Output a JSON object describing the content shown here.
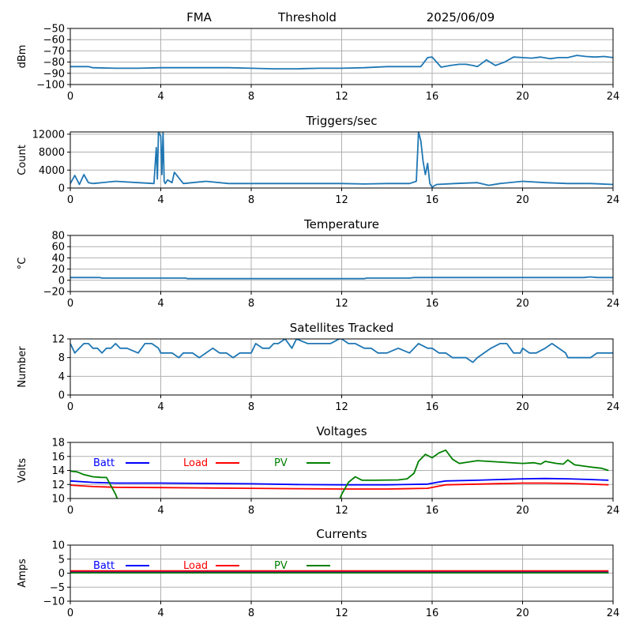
{
  "figure": {
    "header": {
      "left": "FMA",
      "middle": "Threshold",
      "right": "2025/06/09"
    }
  },
  "chart_data": [
    {
      "id": "threshold",
      "type": "line",
      "title": "",
      "xlabel": "",
      "ylabel": "dBm",
      "xlim": [
        0,
        24
      ],
      "ylim": [
        -100,
        -50
      ],
      "xticks": [
        0,
        4,
        8,
        12,
        16,
        20,
        24
      ],
      "yticks": [
        -100,
        -90,
        -80,
        -70,
        -60,
        -50
      ],
      "grid": true,
      "series": [
        {
          "color": "#1f77b4",
          "x": [
            0,
            0.8,
            1,
            2,
            3,
            4,
            5,
            6,
            7,
            8,
            9,
            10,
            11,
            12,
            13,
            14,
            15,
            15.5,
            15.8,
            16,
            16.2,
            16.4,
            16.8,
            17.2,
            17.5,
            17.8,
            18,
            18.4,
            18.8,
            19.2,
            19.6,
            20,
            20.4,
            20.8,
            21.2,
            21.6,
            22,
            22.4,
            22.8,
            23.2,
            23.6,
            24
          ],
          "y": [
            -84,
            -84,
            -85,
            -85.5,
            -85.5,
            -85,
            -85,
            -85,
            -85,
            -85.5,
            -86,
            -86,
            -85.5,
            -85.5,
            -85,
            -84,
            -84,
            -84,
            -76,
            -75.5,
            -80,
            -84.5,
            -83,
            -82,
            -82,
            -83,
            -84,
            -78,
            -83,
            -80,
            -75.5,
            -76,
            -76.5,
            -75.5,
            -77,
            -76,
            -76,
            -74,
            -75,
            -75.5,
            -75,
            -76
          ]
        }
      ]
    },
    {
      "id": "triggers",
      "type": "line",
      "title": "Triggers/sec",
      "xlabel": "",
      "ylabel": "Count",
      "xlim": [
        0,
        24
      ],
      "ylim": [
        0,
        12500
      ],
      "xticks": [
        0,
        4,
        8,
        12,
        16,
        20,
        24
      ],
      "yticks": [
        0,
        4000,
        8000,
        12000
      ],
      "grid": true,
      "series": [
        {
          "color": "#1f77b4",
          "x": [
            0,
            0.2,
            0.4,
            0.6,
            0.8,
            1,
            2,
            3,
            3.7,
            3.8,
            3.85,
            3.9,
            4,
            4.05,
            4.1,
            4.15,
            4.2,
            4.3,
            4.5,
            4.6,
            5,
            6,
            7,
            8,
            9,
            10,
            11,
            12,
            13,
            14,
            15,
            15.3,
            15.4,
            15.5,
            15.6,
            15.7,
            15.8,
            15.9,
            16,
            16.2,
            17,
            18,
            18.5,
            19,
            20,
            21,
            22,
            23,
            24
          ],
          "y": [
            1000,
            2800,
            800,
            3000,
            1200,
            1000,
            1500,
            1200,
            1000,
            9000,
            2000,
            12500,
            11500,
            3000,
            12500,
            1500,
            1000,
            1800,
            1200,
            3500,
            1000,
            1500,
            1000,
            1000,
            1000,
            1000,
            1000,
            1000,
            900,
            1000,
            1000,
            1500,
            12500,
            10500,
            6000,
            3000,
            5500,
            1000,
            200,
            800,
            1000,
            1200,
            600,
            1000,
            1500,
            1200,
            1000,
            1000,
            800
          ]
        }
      ]
    },
    {
      "id": "temperature",
      "type": "line",
      "title": "Temperature",
      "xlabel": "",
      "ylabel": "°C",
      "xlim": [
        0,
        24
      ],
      "ylim": [
        -20,
        80
      ],
      "xticks": [
        0,
        4,
        8,
        12,
        16,
        20,
        24
      ],
      "yticks": [
        -20,
        0,
        20,
        40,
        60,
        80
      ],
      "grid": true,
      "series": [
        {
          "color": "#1f77b4",
          "x": [
            0,
            1.3,
            1.4,
            5.1,
            5.2,
            13,
            13.1,
            15,
            15.2,
            22.7,
            23,
            23.3,
            24
          ],
          "y": [
            5,
            5,
            4,
            4,
            3,
            3,
            4,
            4,
            5,
            5,
            6,
            5,
            5
          ]
        }
      ]
    },
    {
      "id": "satellites",
      "type": "line",
      "title": "Satellites Tracked",
      "xlabel": "",
      "ylabel": "Number",
      "xlim": [
        0,
        24
      ],
      "ylim": [
        0,
        12
      ],
      "xticks": [
        0,
        4,
        8,
        12,
        16,
        20,
        24
      ],
      "yticks": [
        0,
        4,
        8,
        12
      ],
      "grid": true,
      "series": [
        {
          "color": "#1f77b4",
          "x": [
            0,
            0.2,
            0.4,
            0.6,
            0.8,
            1,
            1.2,
            1.4,
            1.6,
            1.8,
            2,
            2.2,
            2.5,
            3,
            3.3,
            3.6,
            3.9,
            4,
            4.2,
            4.5,
            4.8,
            5,
            5.2,
            5.4,
            5.7,
            6,
            6.3,
            6.6,
            6.9,
            7.2,
            7.5,
            7.8,
            8,
            8.2,
            8.5,
            8.8,
            9,
            9.2,
            9.5,
            9.8,
            10,
            10.5,
            11,
            11.5,
            11.9,
            12,
            12.3,
            12.6,
            13,
            13.3,
            13.6,
            14,
            14.5,
            15,
            15.4,
            15.8,
            16,
            16.3,
            16.6,
            16.9,
            17.2,
            17.5,
            17.8,
            18,
            18.3,
            18.6,
            19,
            19.3,
            19.6,
            19.9,
            20,
            20.3,
            20.6,
            21,
            21.3,
            21.6,
            21.9,
            22,
            22.5,
            23,
            23.3,
            23.6,
            24
          ],
          "y": [
            11,
            9,
            10,
            11,
            11,
            10,
            10,
            9,
            10,
            10,
            11,
            10,
            10,
            9,
            11,
            11,
            10,
            9,
            9,
            9,
            8,
            9,
            9,
            9,
            8,
            9,
            10,
            9,
            9,
            8,
            9,
            9,
            9,
            11,
            10,
            10,
            11,
            11,
            12,
            10,
            12,
            11,
            11,
            11,
            12,
            12,
            11,
            11,
            10,
            10,
            9,
            9,
            10,
            9,
            11,
            10,
            10,
            9,
            9,
            8,
            8,
            8,
            7,
            8,
            9,
            10,
            11,
            11,
            9,
            9,
            10,
            9,
            9,
            10,
            11,
            10,
            9,
            8,
            8,
            8,
            9,
            9,
            9
          ]
        }
      ]
    },
    {
      "id": "voltages",
      "type": "line",
      "title": "Voltages",
      "xlabel": "",
      "ylabel": "Volts",
      "xlim": [
        0,
        24
      ],
      "ylim": [
        10,
        18
      ],
      "xticks": [
        0,
        4,
        8,
        12,
        16,
        20,
        24
      ],
      "yticks": [
        10,
        12,
        14,
        16,
        18
      ],
      "grid": true,
      "legend": "top-left, horizontal",
      "series": [
        {
          "name": "Batt",
          "color": "#0000ff",
          "x": [
            0,
            1,
            2,
            4,
            6,
            8,
            10,
            12,
            14,
            15.8,
            16.2,
            16.6,
            18,
            20,
            21,
            22,
            23,
            23.8
          ],
          "y": [
            12.5,
            12.3,
            12.2,
            12.2,
            12.15,
            12.1,
            12,
            11.95,
            11.95,
            12.05,
            12.3,
            12.5,
            12.6,
            12.8,
            12.85,
            12.8,
            12.7,
            12.6
          ]
        },
        {
          "name": "Load",
          "color": "#ff0000",
          "x": [
            0,
            1,
            2,
            4,
            6,
            8,
            10,
            12,
            14,
            15.8,
            16.2,
            16.6,
            18,
            20,
            21,
            22,
            23,
            23.8
          ],
          "y": [
            11.9,
            11.7,
            11.6,
            11.55,
            11.5,
            11.45,
            11.4,
            11.35,
            11.35,
            11.45,
            11.7,
            11.95,
            12.05,
            12.2,
            12.2,
            12.15,
            12.05,
            11.95
          ],
          "_noop": null
        },
        {
          "name": "PV",
          "color": "#008000",
          "segments": [
            {
              "x": [
                0,
                0.3,
                0.6,
                1,
                1.4,
                1.6,
                2,
                2.07
              ],
              "y": [
                13.9,
                13.8,
                13.4,
                13.1,
                13.0,
                13.0,
                10.6,
                10
              ]
            },
            {
              "x": [
                11.93,
                12,
                12.3,
                12.6,
                12.9,
                13.5,
                14.5,
                14.9,
                15.2,
                15.4,
                15.7,
                16,
                16.3,
                16.6,
                16.9,
                17.2,
                18,
                19,
                20,
                20.5,
                20.8,
                21,
                21.5,
                21.8,
                22,
                22.3,
                23,
                23.5,
                23.8
              ],
              "y": [
                10,
                10.6,
                12.3,
                13.1,
                12.6,
                12.6,
                12.65,
                12.8,
                13.6,
                15.3,
                16.3,
                15.8,
                16.5,
                16.9,
                15.6,
                15,
                15.4,
                15.2,
                15,
                15.1,
                14.9,
                15.3,
                15,
                14.9,
                15.5,
                14.8,
                14.5,
                14.3,
                14
              ]
            }
          ]
        }
      ]
    },
    {
      "id": "currents",
      "type": "line",
      "title": "Currents",
      "xlabel": "",
      "ylabel": "Amps",
      "xlim": [
        0,
        24
      ],
      "ylim": [
        -10,
        10
      ],
      "xticks": [
        0,
        4,
        8,
        12,
        16,
        20,
        24
      ],
      "yticks": [
        -10,
        -5,
        0,
        5,
        10
      ],
      "grid": true,
      "legend": "top-left, horizontal",
      "series": [
        {
          "name": "Batt",
          "color": "#0000ff",
          "x": [
            0,
            23.8
          ],
          "y": [
            0.3,
            0.3
          ]
        },
        {
          "name": "Load",
          "color": "#ff0000",
          "x": [
            0,
            23.8
          ],
          "y": [
            0.8,
            0.8
          ]
        },
        {
          "name": "PV",
          "color": "#008000",
          "x": [
            0,
            23.8
          ],
          "y": [
            0.1,
            0.1
          ]
        }
      ]
    }
  ]
}
